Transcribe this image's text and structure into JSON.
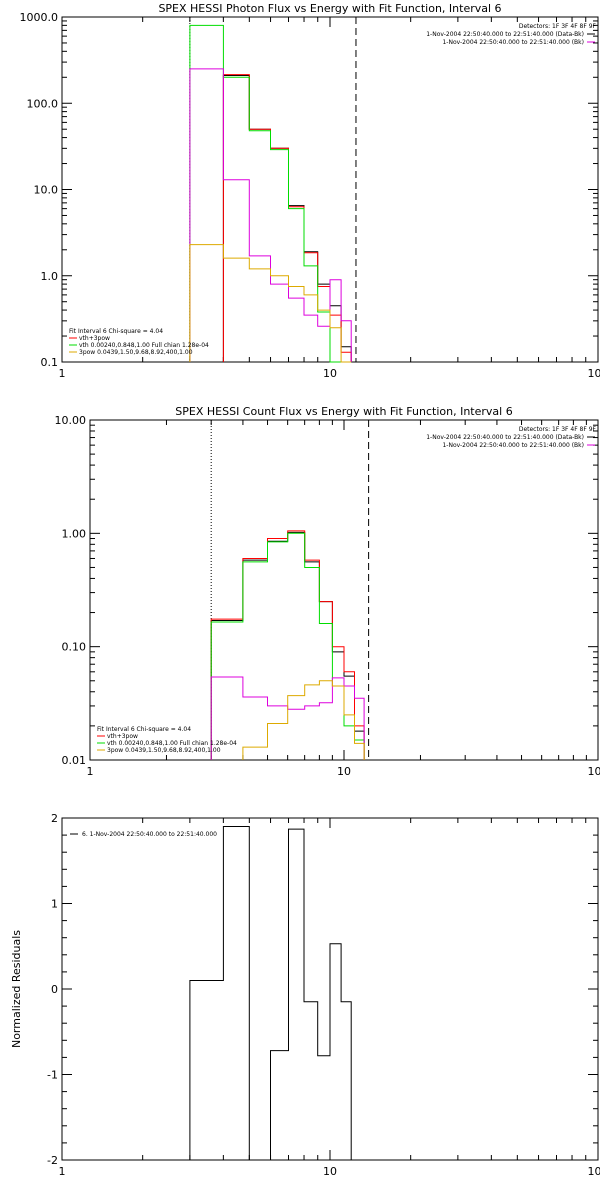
{
  "chart_data": [
    {
      "type": "line",
      "title": "SPEX HESSI Photon Flux vs Energy with Fit Function, Interval 6",
      "xlabel": "",
      "ylabel": "",
      "xscale": "log",
      "yscale": "log",
      "xlim": [
        1,
        100
      ],
      "ylim": [
        0.1,
        1000
      ],
      "x_tick_labels": [
        "1",
        "10",
        "100"
      ],
      "y_ticks": [
        {
          "value": 0.1,
          "label": "0.1"
        },
        {
          "value": 1,
          "label": "1.0"
        },
        {
          "value": 10,
          "label": "10.0"
        },
        {
          "value": 100,
          "label": "100.0"
        },
        {
          "value": 1000,
          "label": "1000.0"
        }
      ],
      "vlines": [
        {
          "x": 3.0,
          "style": "dotted"
        },
        {
          "x": 12.5,
          "style": "dashed"
        }
      ],
      "bin_edges": [
        3.0,
        4.0,
        5.0,
        6.0,
        7.0,
        8.0,
        9.0,
        10.0,
        11.0,
        12.0
      ],
      "series": [
        {
          "color": "#000000",
          "values": [
            null,
            210,
            50,
            30,
            6.5,
            1.9,
            0.8,
            0.45,
            0.15
          ]
        },
        {
          "color": "#ff0000",
          "values": [
            null,
            215,
            50,
            30,
            6.3,
            1.85,
            0.75,
            0.35,
            0.13
          ]
        },
        {
          "color": "#00dd00",
          "values": [
            800,
            200,
            48,
            29,
            6.0,
            1.3,
            0.38,
            0.1,
            0.09
          ]
        },
        {
          "color": "#dd00dd",
          "values": [
            250,
            13,
            1.7,
            0.8,
            0.55,
            0.35,
            0.26,
            0.9,
            0.3
          ]
        },
        {
          "color": "#ddaa00",
          "values": [
            2.3,
            1.6,
            1.2,
            1.0,
            0.75,
            0.6,
            0.4,
            0.25,
            0.1
          ]
        }
      ],
      "legend_top_right": [
        {
          "text": "Detectors: 1F 3F 4F 8F 9F",
          "color": ""
        },
        {
          "text": "1-Nov-2004 22:50:40.000 to 22:51:40.000 (Data-Bk)",
          "color": "#000000"
        },
        {
          "text": "1-Nov-2004 22:50:40.000 to 22:51:40.000 (Bk)",
          "color": "#dd00dd"
        }
      ],
      "legend_bottom_left": [
        {
          "text": "Fit Interval 6   Chi-square = 4.04",
          "color": ""
        },
        {
          "text": "vth+3pow",
          "color": "#ff0000"
        },
        {
          "text": "vth 0.00240,0.848,1.00  Full chian 1.28e-04",
          "color": "#00dd00"
        },
        {
          "text": "3pow 0.0439,1.50,9.68,8.92,400,1.00",
          "color": "#ddaa00"
        }
      ]
    },
    {
      "type": "line",
      "title": "SPEX HESSI Count Flux vs Energy with Fit Function, Interval 6",
      "xlabel": "",
      "ylabel": "",
      "xscale": "log",
      "yscale": "log",
      "xlim": [
        1,
        100
      ],
      "ylim": [
        0.01,
        10
      ],
      "x_tick_labels": [
        "1",
        "10",
        "100"
      ],
      "y_ticks": [
        {
          "value": 0.01,
          "label": "0.01"
        },
        {
          "value": 0.1,
          "label": "0.10"
        },
        {
          "value": 1,
          "label": "1.00"
        },
        {
          "value": 10,
          "label": "10.00"
        }
      ],
      "vlines": [
        {
          "x": 3.0,
          "style": "dotted"
        },
        {
          "x": 12.5,
          "style": "dashed"
        }
      ],
      "bin_edges": [
        3.0,
        4.0,
        5.0,
        6.0,
        7.0,
        8.0,
        9.0,
        10.0,
        11.0,
        12.0
      ],
      "series": [
        {
          "color": "#000000",
          "values": [
            0.17,
            0.58,
            0.85,
            1.02,
            0.56,
            0.25,
            0.09,
            0.055,
            0.018
          ]
        },
        {
          "color": "#ff0000",
          "values": [
            0.175,
            0.6,
            0.9,
            1.05,
            0.58,
            0.25,
            0.1,
            0.06,
            0.02
          ]
        },
        {
          "color": "#00dd00",
          "values": [
            0.165,
            0.56,
            0.84,
            1.0,
            0.5,
            0.16,
            0.045,
            0.02,
            0.015
          ]
        },
        {
          "color": "#dd00dd",
          "values": [
            0.054,
            0.036,
            0.03,
            0.028,
            0.03,
            0.032,
            0.053,
            0.045,
            0.035
          ]
        },
        {
          "color": "#ddaa00",
          "values": [
            null,
            0.013,
            0.021,
            0.037,
            0.046,
            0.05,
            0.045,
            0.025,
            0.014
          ]
        }
      ],
      "legend_top_right": [
        {
          "text": "Detectors: 1F 3F 4F 8F 9F",
          "color": ""
        },
        {
          "text": "1-Nov-2004 22:50:40.000 to 22:51:40.000 (Data-Bk)",
          "color": "#000000"
        },
        {
          "text": "1-Nov-2004 22:50:40.000 to 22:51:40.000 (Bk)",
          "color": "#dd00dd"
        }
      ],
      "legend_bottom_left": [
        {
          "text": "Fit Interval 6   Chi-square = 4.04",
          "color": ""
        },
        {
          "text": "vth+3pow",
          "color": "#ff0000"
        },
        {
          "text": "vth 0.00240,0.848,1.00  Full chian 1.28e-04",
          "color": "#00dd00"
        },
        {
          "text": "3pow 0.0439,1.50,9.68,8.92,400,1.00",
          "color": "#ddaa00"
        }
      ]
    },
    {
      "type": "line",
      "title": "",
      "xlabel": "",
      "ylabel": "Normalized Residuals",
      "xscale": "log",
      "yscale": "linear",
      "xlim": [
        1,
        100
      ],
      "ylim": [
        -2,
        2
      ],
      "x_tick_labels": [
        "1",
        "10",
        "100"
      ],
      "y_ticks": [
        {
          "value": -2,
          "label": "-2"
        },
        {
          "value": -1,
          "label": "-1"
        },
        {
          "value": 0,
          "label": "0"
        },
        {
          "value": 1,
          "label": "1"
        },
        {
          "value": 2,
          "label": "2"
        }
      ],
      "vlines": [],
      "bin_edges": [
        3.0,
        4.0,
        5.0,
        6.0,
        7.0,
        8.0,
        9.0,
        10.0,
        11.0,
        12.0
      ],
      "series": [
        {
          "color": "#000000",
          "values": [
            0.1,
            1.9,
            -2.05,
            -0.72,
            1.87,
            -0.15,
            -0.78,
            0.53,
            -0.15
          ]
        }
      ],
      "legend_top_right": [],
      "legend_bottom_left": [],
      "legend_top_left": [
        {
          "text": "6. 1-Nov-2004 22:50:40.000 to 22:51:40.000",
          "color": "#000000"
        }
      ]
    }
  ]
}
